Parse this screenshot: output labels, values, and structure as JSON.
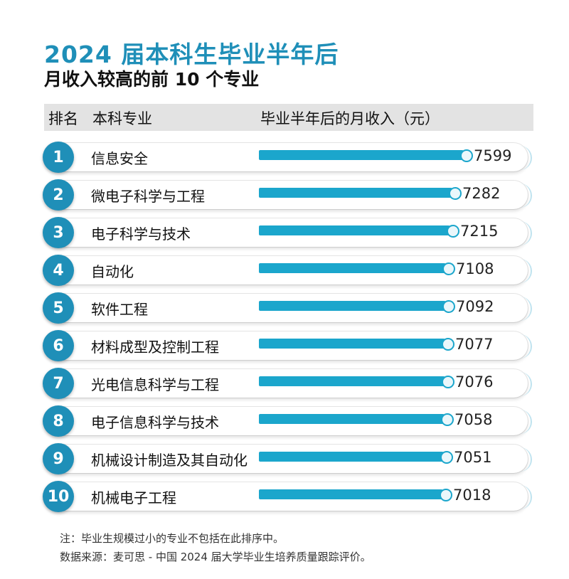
{
  "title": "2024 届本科生毕业半年后",
  "subtitle": "月收入较高的前 10 个专业",
  "header": {
    "rank": "排名",
    "major": "本科专业",
    "income": "毕业半年后的月收入（元）"
  },
  "notes": {
    "note1": "注：毕业生规模过小的专业不包括在此排序中。",
    "note2": "数据来源：麦可思 - 中国 2024 届大学毕业生培养质量跟踪评价。"
  },
  "colors": {
    "accent": "#1f8fb8",
    "bar": "#1ba6cc",
    "header_bg": "#e3e3e3"
  },
  "chart_data": {
    "type": "bar",
    "orientation": "horizontal",
    "ranks": [
      "1",
      "2",
      "3",
      "4",
      "5",
      "6",
      "7",
      "8",
      "9",
      "10"
    ],
    "categories": [
      "信息安全",
      "微电子科学与工程",
      "电子科学与技术",
      "自动化",
      "软件工程",
      "材料成型及控制工程",
      "光电信息科学与工程",
      "电子信息科学与技术",
      "机械设计制造及其自动化",
      "机械电子工程"
    ],
    "values": [
      7599,
      7282,
      7215,
      7108,
      7092,
      7077,
      7076,
      7058,
      7051,
      7018
    ],
    "xlabel": "毕业半年后的月收入（元）",
    "ylabel": "本科专业",
    "grid": false,
    "legend": "none"
  }
}
